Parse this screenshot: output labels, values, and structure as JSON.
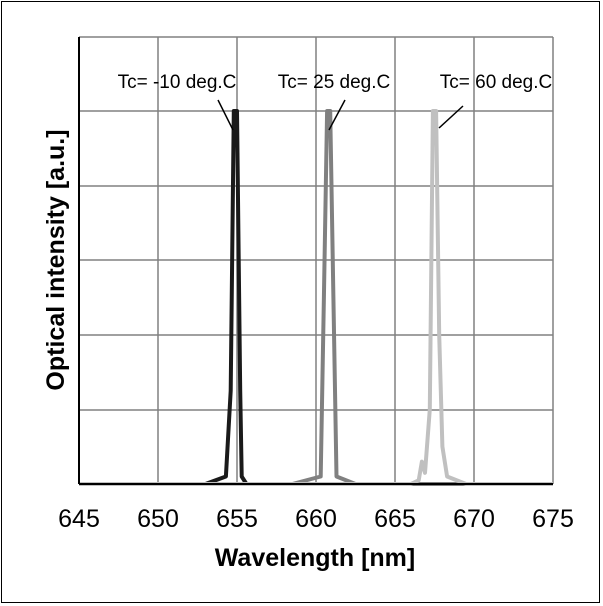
{
  "chart_data": {
    "type": "line",
    "title": "",
    "xlabel": "Wavelength [nm]",
    "ylabel": "Optical intensity [a.u.]",
    "xlim": [
      645,
      675
    ],
    "x_ticks": [
      "645",
      "650",
      "655",
      "660",
      "665",
      "670",
      "675"
    ],
    "ylim": [
      0,
      1
    ],
    "y_ticks_labeled": false,
    "grid": true,
    "legend": "none",
    "series": [
      {
        "name": "Tc= -10 deg.C",
        "color": "#1a1a1a",
        "x": [
          645,
          653.0,
          654.3,
          654.6,
          654.8,
          655.0,
          655.2,
          655.3,
          655.6,
          656.5,
          675
        ],
        "y": [
          0,
          0,
          0.02,
          0.25,
          1.0,
          1.0,
          0.25,
          0.02,
          0,
          0,
          0
        ]
      },
      {
        "name": "Tc= 25 deg.C",
        "color": "#808080",
        "x": [
          645,
          658.5,
          660.3,
          660.5,
          660.7,
          660.9,
          661.1,
          661.3,
          662.5,
          675
        ],
        "y": [
          0,
          0,
          0.02,
          0.5,
          1.0,
          1.0,
          0.5,
          0.02,
          0,
          0
        ]
      },
      {
        "name": "Tc= 60 deg.C",
        "color": "#c0c0c0",
        "x": [
          645,
          666.0,
          666.5,
          666.7,
          666.9,
          667.2,
          667.4,
          667.6,
          667.8,
          668.0,
          668.3,
          669.5,
          675
        ],
        "y": [
          0,
          0,
          0.01,
          0.06,
          0.03,
          0.2,
          1.0,
          1.0,
          0.4,
          0.1,
          0.02,
          0,
          0
        ]
      }
    ],
    "annotations": [
      {
        "text": "Tc= -10 deg.C",
        "series": 0
      },
      {
        "text": "Tc= 25 deg.C",
        "series": 1
      },
      {
        "text": "Tc= 60 deg.C",
        "series": 2
      }
    ]
  }
}
